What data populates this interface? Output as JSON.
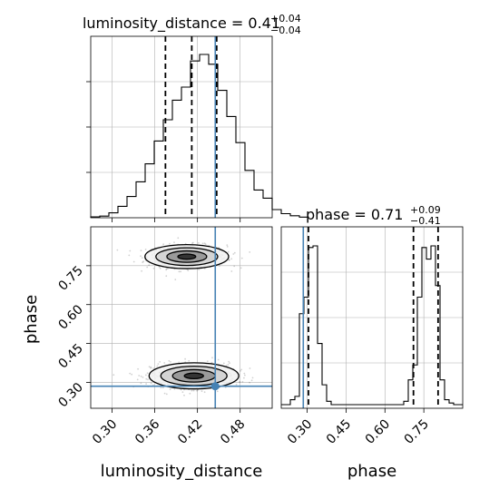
{
  "chart_data": {
    "type": "corner",
    "parameters": [
      "luminosity_distance",
      "phase"
    ],
    "axis_labels": {
      "x_left": "luminosity_distance",
      "x_right": "phase",
      "y_left": "phase"
    },
    "titles": {
      "luminosity_distance": {
        "prefix": "luminosity_distance = 0.41",
        "sup": "+0.04",
        "sub": "−0.04"
      },
      "phase": {
        "prefix": "phase = 0.71",
        "sup": "+0.09",
        "sub": "−0.41"
      }
    },
    "truths": {
      "luminosity_distance": 0.445,
      "phase": 0.285
    },
    "ranges": {
      "luminosity_distance": [
        0.27,
        0.525
      ],
      "phase": [
        0.2,
        0.9
      ]
    },
    "ticks": {
      "luminosity_distance": [
        0.3,
        0.36,
        0.42,
        0.48
      ],
      "luminosity_distance_labels": [
        "0.30",
        "0.36",
        "0.42",
        "0.48"
      ],
      "phase": [
        0.3,
        0.45,
        0.6,
        0.75
      ],
      "phase_labels": [
        "0.30",
        "0.45",
        "0.60",
        "0.75"
      ]
    },
    "hist_luminosity_distance": {
      "edges_start": 0.27,
      "bin_width": 0.01275,
      "values": [
        0.005,
        0.01,
        0.03,
        0.07,
        0.13,
        0.22,
        0.33,
        0.47,
        0.6,
        0.72,
        0.8,
        0.96,
        1.0,
        0.94,
        0.78,
        0.62,
        0.46,
        0.29,
        0.17,
        0.12,
        0.05,
        0.025,
        0.012,
        0.004
      ]
    },
    "quantiles_luminosity_distance": [
      0.375,
      0.412,
      0.447
    ],
    "hist_phase": {
      "edges_start": 0.2,
      "bin_width": 0.0175,
      "values": [
        0.0,
        0.0,
        0.03,
        0.05,
        0.55,
        0.65,
        0.95,
        0.96,
        0.37,
        0.12,
        0.02,
        0,
        0,
        0,
        0,
        0,
        0,
        0,
        0,
        0,
        0,
        0,
        0,
        0,
        0,
        0,
        0,
        0.02,
        0.15,
        0.24,
        0.65,
        0.95,
        0.88,
        0.96,
        0.72,
        0.15,
        0.03,
        0.01,
        0,
        0
      ]
    },
    "quantiles_phase": [
      0.305,
      0.71,
      0.805
    ],
    "modes_2d": [
      {
        "x": 0.405,
        "y": 0.785,
        "sx": 0.028,
        "sy": 0.022
      },
      {
        "x": 0.415,
        "y": 0.325,
        "sx": 0.03,
        "sy": 0.024
      }
    ],
    "colors": {
      "truth": "#4682b4",
      "hist": "#000000",
      "grid": "#b0b0b0",
      "points": "#000000"
    }
  }
}
